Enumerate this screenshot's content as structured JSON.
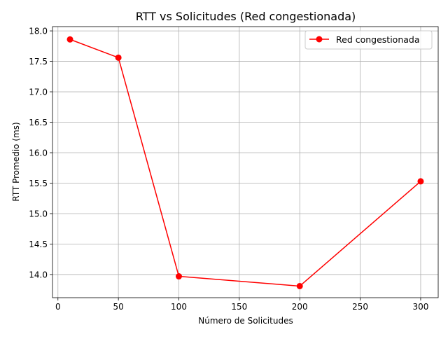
{
  "chart_data": {
    "type": "line",
    "title": "RTT vs Solicitudes (Red congestionada)",
    "xlabel": "Número de Solicitudes",
    "ylabel": "RTT Promedio (ms)",
    "xlim": [
      -4.5,
      314.5
    ],
    "ylim": [
      13.62,
      18.07
    ],
    "x_ticks": [
      0,
      50,
      100,
      150,
      200,
      250,
      300
    ],
    "y_ticks": [
      14.0,
      14.5,
      15.0,
      15.5,
      16.0,
      16.5,
      17.0,
      17.5,
      18.0
    ],
    "x_tick_labels": [
      "0",
      "50",
      "100",
      "150",
      "200",
      "250",
      "300"
    ],
    "y_tick_labels": [
      "14.0",
      "14.5",
      "15.0",
      "15.5",
      "16.0",
      "16.5",
      "17.0",
      "17.5",
      "18.0"
    ],
    "grid": true,
    "legend_position": "top-right",
    "series": [
      {
        "name": "Red congestionada",
        "color": "#ff0000",
        "marker": "circle",
        "x": [
          10,
          50,
          100,
          200,
          300
        ],
        "y": [
          17.86,
          17.56,
          13.97,
          13.81,
          15.53
        ]
      }
    ]
  }
}
